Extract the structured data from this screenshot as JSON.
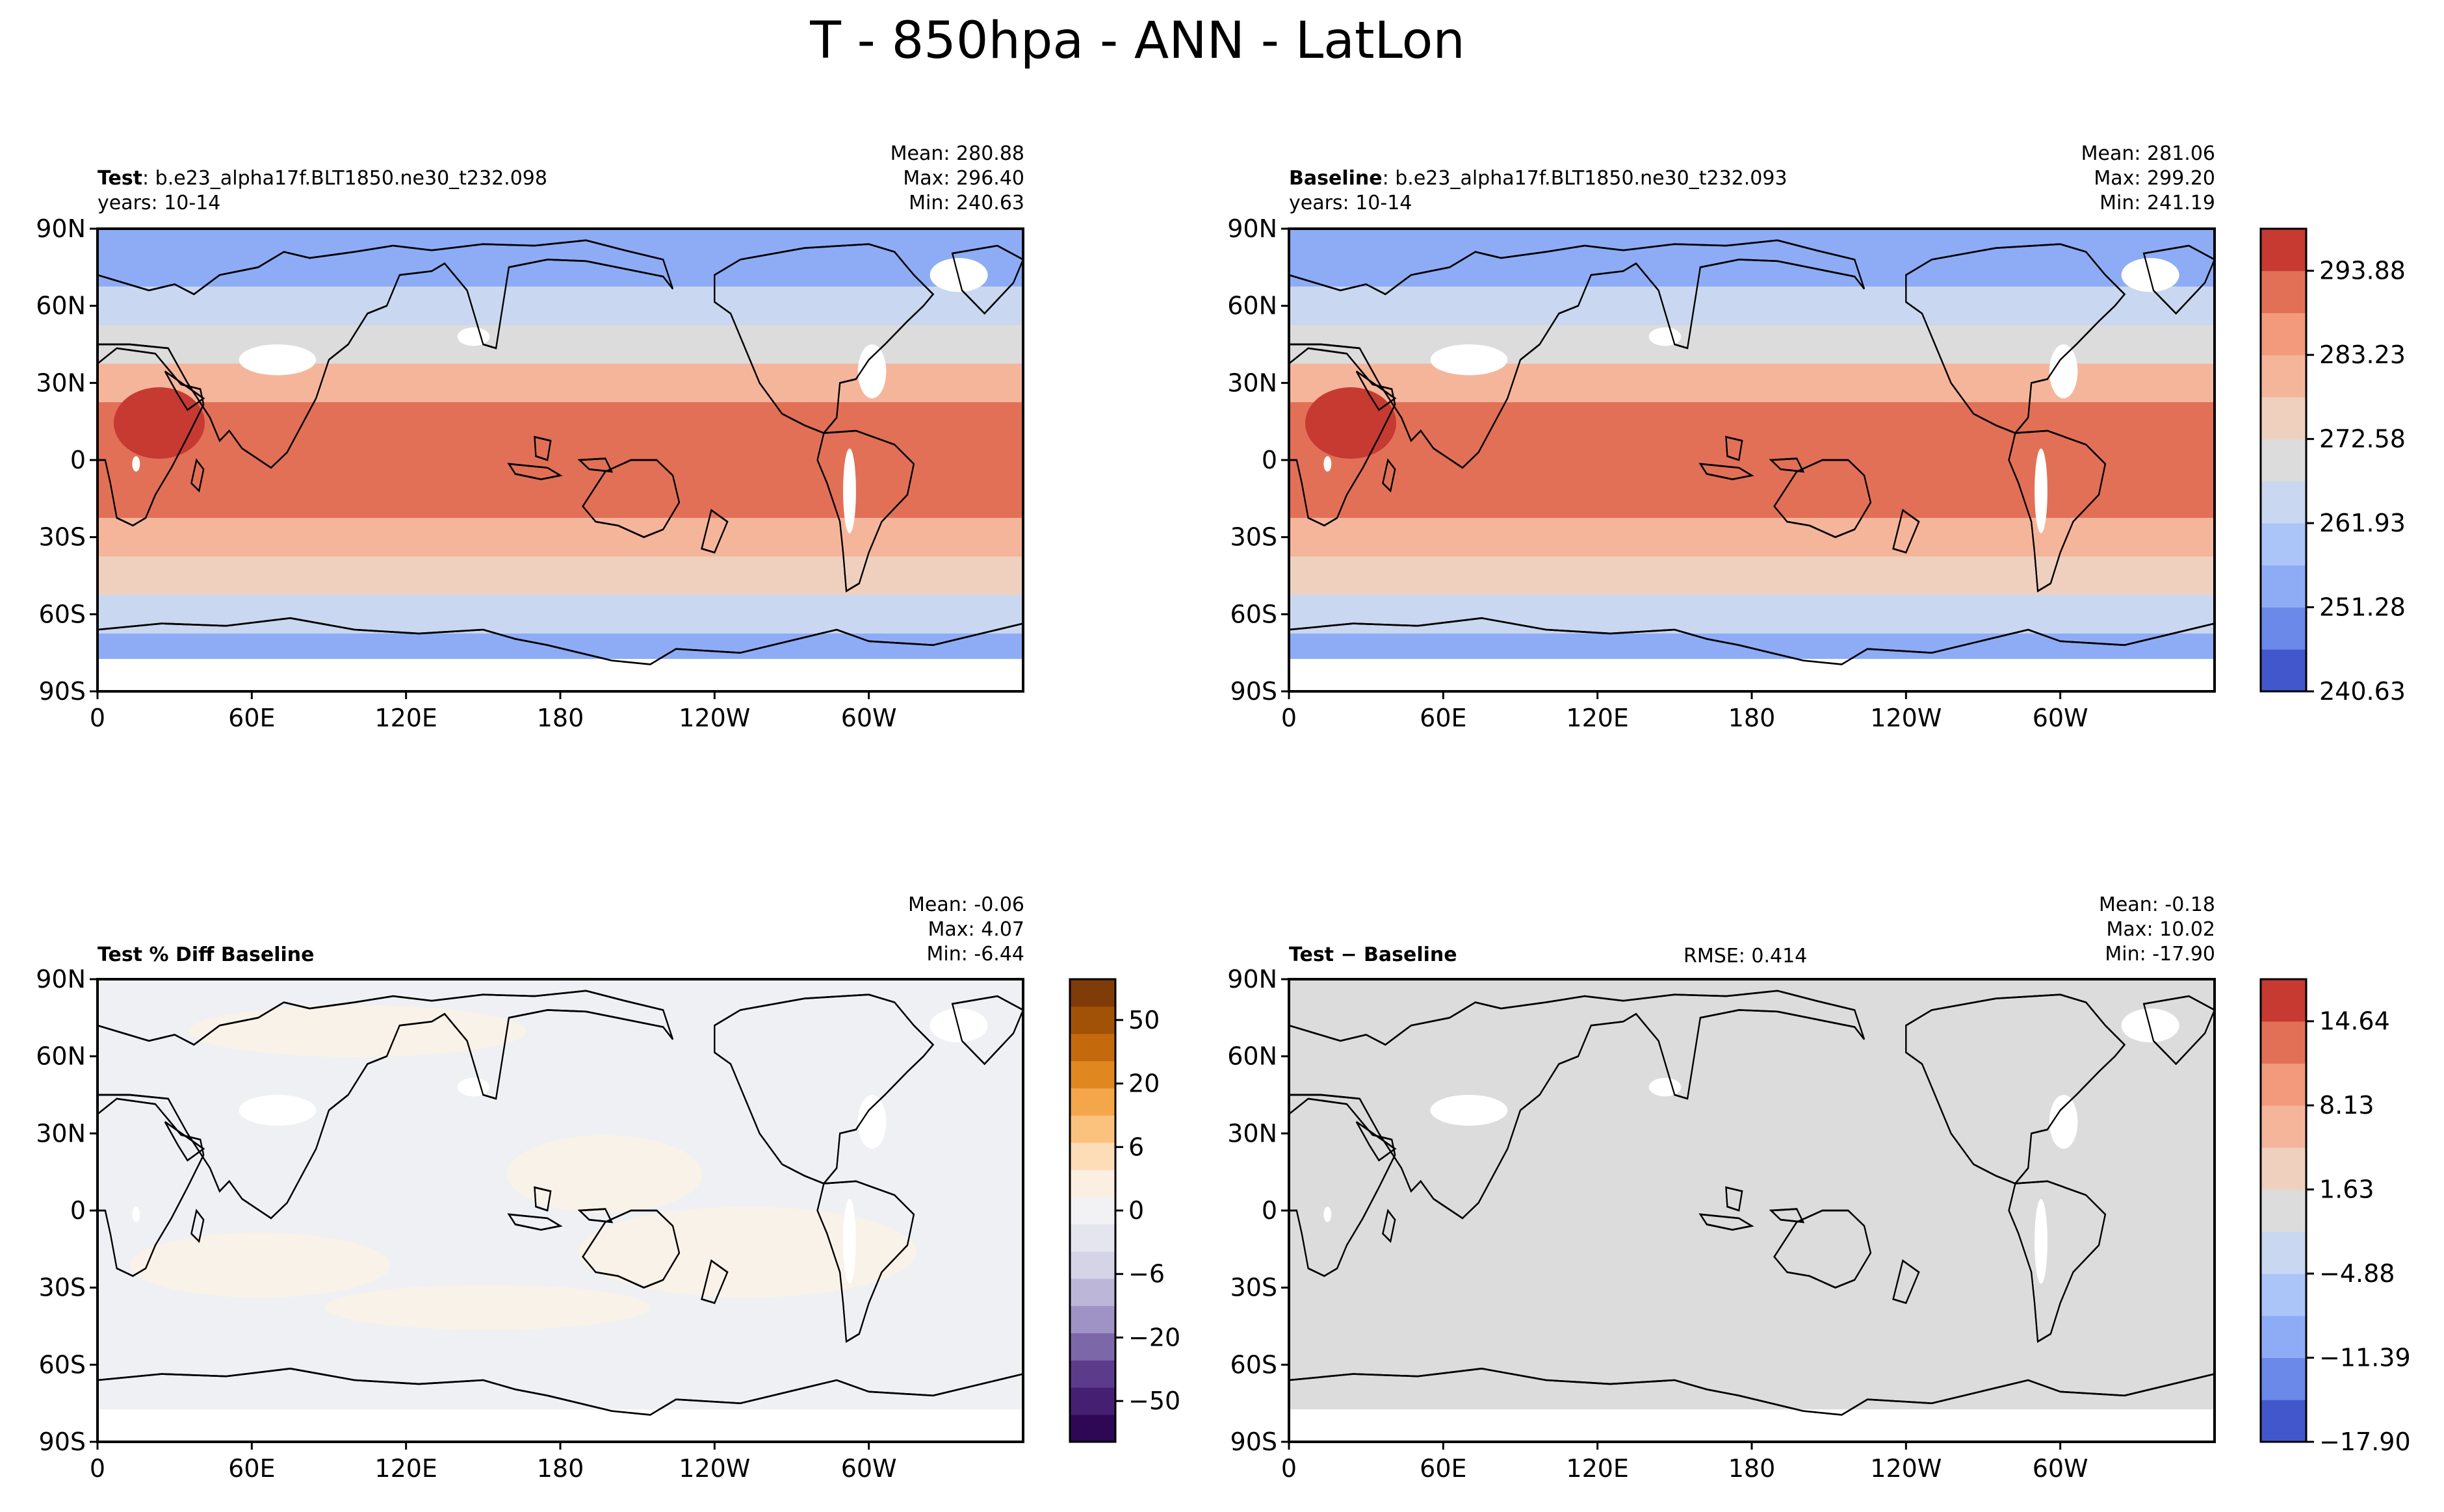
{
  "suptitle": "T - 850hpa - ANN - LatLon",
  "lat_ticks": [
    "90N",
    "60N",
    "30N",
    "0",
    "30S",
    "60S",
    "90S"
  ],
  "lon_ticks": [
    "0",
    "60E",
    "120E",
    "180",
    "120W",
    "60W"
  ],
  "panels": {
    "test": {
      "name": "Test",
      "case": ": b.e23_alpha17f.BLT1850.ne30_t232.098",
      "years": "years: 10-14",
      "mean": "Mean: 280.88",
      "max": "Max: 296.40",
      "min": "Min: 240.63"
    },
    "baseline": {
      "name": "Baseline",
      "case": ": b.e23_alpha17f.BLT1850.ne30_t232.093",
      "years": "years: 10-14",
      "mean": "Mean: 281.06",
      "max": "Max: 299.20",
      "min": "Min: 241.19"
    },
    "pctdiff": {
      "name": "Test % Diff Baseline",
      "mean": "Mean: -0.06",
      "max": "Max:  4.07",
      "min": "Min: -6.44"
    },
    "diff": {
      "name": "Test − Baseline",
      "rmse": "RMSE: 0.414",
      "mean": "Mean: -0.18",
      "max": "Max: 10.02",
      "min": "Min: -17.90"
    }
  },
  "colorbars": {
    "main": {
      "ticks": [
        "293.88",
        "283.23",
        "272.58",
        "261.93",
        "251.28",
        "240.63"
      ],
      "colors": [
        "#4357cc",
        "#6a89e8",
        "#8eacf5",
        "#abc5f9",
        "#c9d8f0",
        "#dcdcdc",
        "#efd0bf",
        "#f5b59b",
        "#f29a7b",
        "#e27057",
        "#c63a32"
      ]
    },
    "pct": {
      "ticks": [
        "50",
        "20",
        "6",
        "0",
        "−6",
        "−20",
        "−50"
      ],
      "colors": [
        "#2e0854",
        "#452072",
        "#5c3c8a",
        "#7c68a8",
        "#9f92c4",
        "#bcb6d8",
        "#d5d3e6",
        "#e5e5ef",
        "#f2f2f4",
        "#fbefe1",
        "#fddcb8",
        "#fbc27e",
        "#f4a64a",
        "#e1871f",
        "#c46a0c",
        "#a25207",
        "#7f3b08"
      ]
    },
    "diff": {
      "ticks": [
        "14.64",
        "8.13",
        "1.63",
        "−4.88",
        "−11.39",
        "−17.90"
      ],
      "colors": [
        "#4357cc",
        "#6a89e8",
        "#8eacf5",
        "#abc5f9",
        "#c9d8f0",
        "#dcdcdc",
        "#efd0bf",
        "#f5b59b",
        "#f29a7b",
        "#e27057",
        "#c63a32"
      ]
    }
  },
  "chart_data": [
    {
      "type": "heatmap",
      "title": "Test: b.e23_alpha17f.BLT1850.ne30_t232.098",
      "variable": "T - 850hpa - ANN",
      "x": [
        "0",
        "60E",
        "120E",
        "180",
        "120W",
        "60W"
      ],
      "y": [
        "90N",
        "60N",
        "30N",
        "0",
        "30S",
        "60S",
        "90S"
      ],
      "xlim": [
        0,
        360
      ],
      "ylim": [
        -90,
        90
      ],
      "stats": {
        "mean": 280.88,
        "max": 296.4,
        "min": 240.63
      },
      "colorbar_range": [
        240.63,
        299.2
      ],
      "zonal_mean_by_lat": {
        "lat": [
          75,
          60,
          45,
          30,
          15,
          0,
          -15,
          -30,
          -45,
          -60,
          -75
        ],
        "value": [
          253,
          262,
          272,
          281,
          289,
          291,
          289,
          283,
          274,
          265,
          256
        ]
      }
    },
    {
      "type": "heatmap",
      "title": "Baseline: b.e23_alpha17f.BLT1850.ne30_t232.093",
      "variable": "T - 850hpa - ANN",
      "x": [
        "0",
        "60E",
        "120E",
        "180",
        "120W",
        "60W"
      ],
      "y": [
        "90N",
        "60N",
        "30N",
        "0",
        "30S",
        "60S",
        "90S"
      ],
      "xlim": [
        0,
        360
      ],
      "ylim": [
        -90,
        90
      ],
      "stats": {
        "mean": 281.06,
        "max": 299.2,
        "min": 241.19
      },
      "colorbar_range": [
        240.63,
        299.2
      ],
      "zonal_mean_by_lat": {
        "lat": [
          75,
          60,
          45,
          30,
          15,
          0,
          -15,
          -30,
          -45,
          -60,
          -75
        ],
        "value": [
          253,
          262,
          272,
          281,
          289,
          291,
          289,
          283,
          274,
          265,
          256
        ]
      }
    },
    {
      "type": "heatmap",
      "title": "Test % Diff Baseline",
      "x": [
        "0",
        "60E",
        "120E",
        "180",
        "120W",
        "60W"
      ],
      "y": [
        "90N",
        "60N",
        "30N",
        "0",
        "30S",
        "60S",
        "90S"
      ],
      "stats": {
        "mean": -0.06,
        "max": 4.07,
        "min": -6.44
      },
      "colorbar_ticks": [
        50,
        20,
        6,
        0,
        -6,
        -20,
        -50
      ]
    },
    {
      "type": "heatmap",
      "title": "Test − Baseline",
      "x": [
        "0",
        "60E",
        "120E",
        "180",
        "120W",
        "60W"
      ],
      "y": [
        "90N",
        "60N",
        "30N",
        "0",
        "30S",
        "60S",
        "90S"
      ],
      "stats": {
        "mean": -0.18,
        "max": 10.02,
        "min": -17.9,
        "rmse": 0.414
      },
      "colorbar_range": [
        -17.9,
        21.15
      ]
    }
  ]
}
